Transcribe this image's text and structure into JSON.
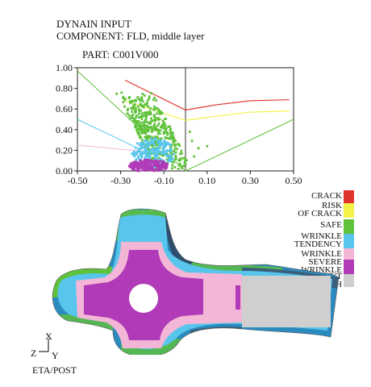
{
  "header": {
    "line1": "DYNAIN INPUT",
    "line2": "COMPONENT: FLD, middle layer",
    "part": "PART: C001V000"
  },
  "chart_data": {
    "type": "scatter",
    "xlabel": "",
    "ylabel": "",
    "xlim": [
      -0.5,
      0.5
    ],
    "ylim": [
      0.0,
      1.0
    ],
    "x_ticks": [
      "-0.50",
      "-0.30",
      "-0.10",
      "0.10",
      "0.30",
      "0.50"
    ],
    "y_ticks": [
      "1.00",
      "0.80",
      "0.60",
      "0.40",
      "0.20",
      "0.00"
    ],
    "grid": false,
    "colors": {
      "crack": "#e0342f",
      "risk": "#f2f24a",
      "safe": "#5fc23a",
      "wrinkle_tendency": "#58c6ec",
      "wrinkle": "#f3b6d6",
      "severe_wrinkle": "#b03ab8",
      "insufficient_stretch": "#cfcfcf"
    },
    "curves": {
      "crack": [
        [
          -0.28,
          0.88
        ],
        [
          0.0,
          0.59
        ],
        [
          0.14,
          0.64
        ],
        [
          0.3,
          0.68
        ],
        [
          0.48,
          0.69
        ]
      ],
      "risk": [
        [
          -0.28,
          0.68
        ],
        [
          0.0,
          0.49
        ],
        [
          0.14,
          0.53
        ],
        [
          0.3,
          0.57
        ],
        [
          0.48,
          0.58
        ]
      ],
      "safe_boundary_left": [
        [
          -0.5,
          0.97
        ],
        [
          0.0,
          0.0
        ]
      ],
      "safe_boundary_right": [
        [
          0.0,
          0.0
        ],
        [
          0.5,
          0.5
        ]
      ],
      "wrinkle_tendency_boundary": [
        [
          -0.5,
          0.5
        ],
        [
          -0.2,
          0.2
        ]
      ],
      "wrinkle_boundary": [
        [
          -0.5,
          0.25
        ],
        [
          -0.2,
          0.19
        ]
      ]
    },
    "clusters": [
      {
        "name": "safe",
        "x": -0.17,
        "y": 0.39,
        "dx": 0.12,
        "dy": 0.38
      },
      {
        "name": "wrinkle_tendency",
        "x": -0.15,
        "y": 0.17,
        "dx": 0.1,
        "dy": 0.15
      },
      {
        "name": "severe_wrinkle",
        "x": -0.17,
        "y": 0.05,
        "dx": 0.09,
        "dy": 0.06
      }
    ]
  },
  "legend": [
    {
      "label": "CRACK",
      "color": "#e0342f"
    },
    {
      "label": "RISK\nOF CRACK",
      "color": "#f2f24a"
    },
    {
      "label": "SAFE",
      "color": "#5fc23a"
    },
    {
      "label": "WRINKLE\nTENDENCY",
      "color": "#58c6ec"
    },
    {
      "label": "WRINKLE",
      "color": "#f3b6d6"
    },
    {
      "label": "SEVERE\nWRINKLE",
      "color": "#b03ab8"
    },
    {
      "label": "INSUFFICIENT\nSTRETCH",
      "color": "#cfcfcf"
    }
  ],
  "triad": {
    "x_label": "X",
    "z_label": "Z",
    "y_label": "Y",
    "view_label": "ETA/POST"
  }
}
